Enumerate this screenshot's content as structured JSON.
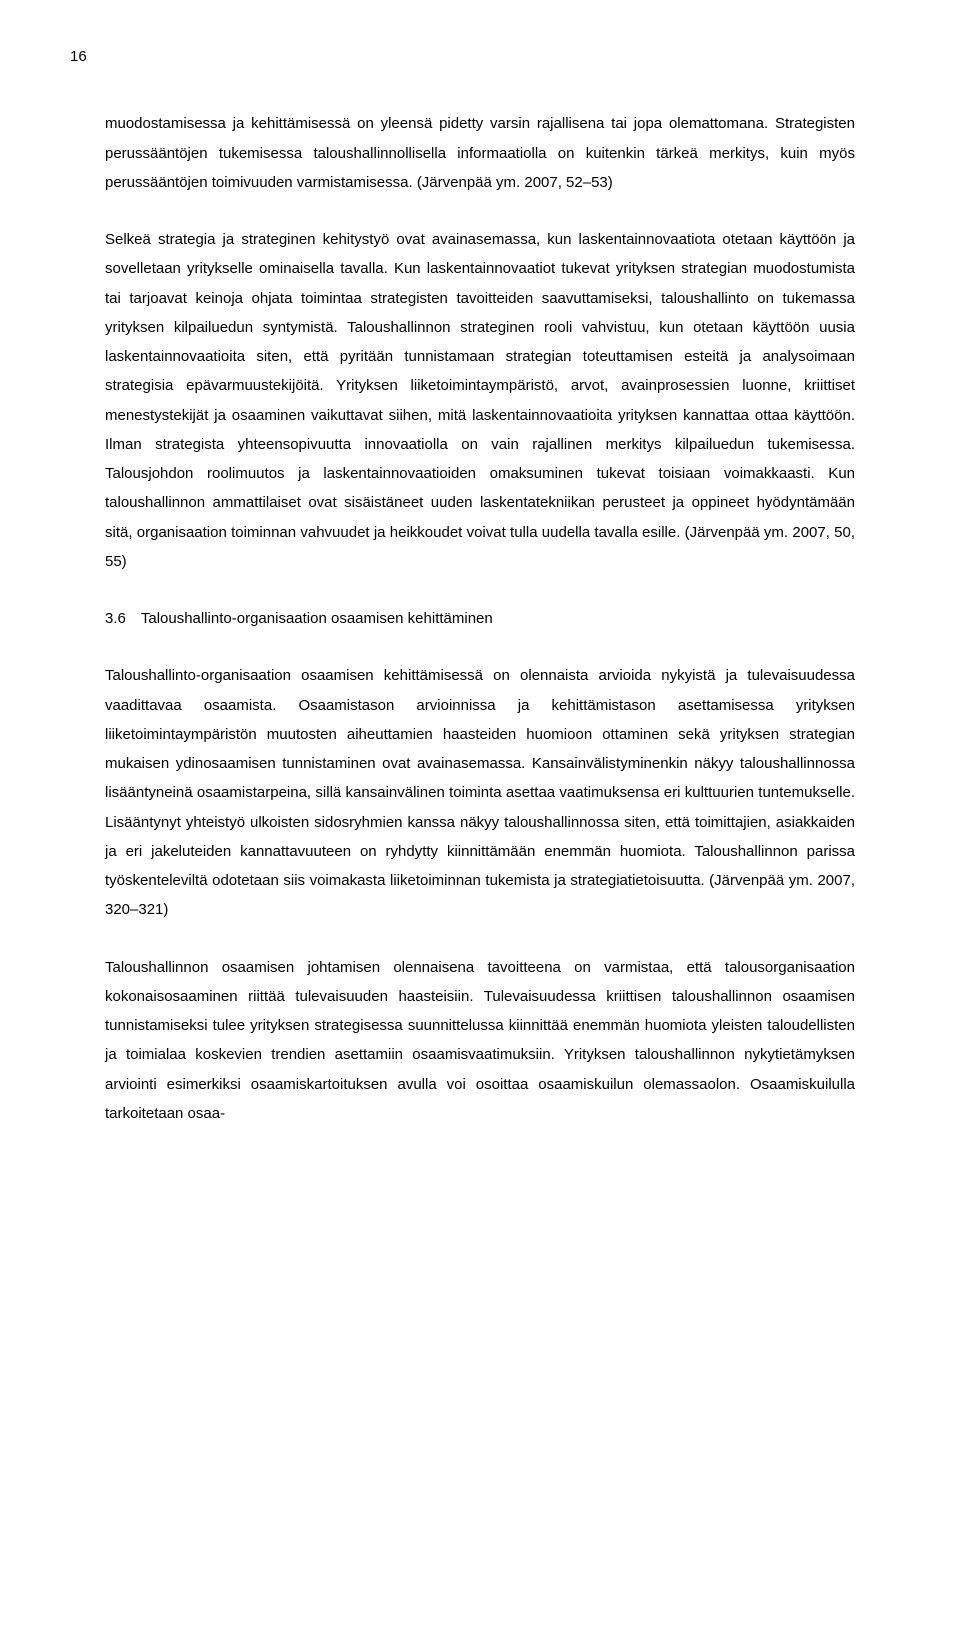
{
  "page_number": "16",
  "paragraphs": {
    "p1": "muodostamisessa ja kehittämisessä on yleensä pidetty varsin rajallisena tai jopa olemattomana. Strategisten perussääntöjen tukemisessa taloushallinnollisella informaatiolla on kuitenkin tärkeä merkitys, kuin myös perussääntöjen toimivuuden varmistamisessa. (Järvenpää ym. 2007, 52–53)",
    "p2": "Selkeä strategia ja strateginen kehitystyö ovat avainasemassa, kun laskentainnovaatiota otetaan käyttöön ja sovelletaan yritykselle ominaisella tavalla. Kun laskentainnovaatiot tukevat yrityksen strategian muodostumista tai tarjoavat keinoja ohjata toimintaa strategisten tavoitteiden saavuttamiseksi, taloushallinto on tukemassa yrityksen kilpailuedun syntymistä. Taloushallinnon strateginen rooli vahvistuu, kun otetaan käyttöön uusia laskentainnovaatioita siten, että pyritään tunnistamaan strategian toteuttamisen esteitä ja analysoimaan strategisia epävarmuustekijöitä. Yrityksen liiketoimintaympäristö, arvot, avainprosessien luonne, kriittiset menestystekijät ja osaaminen vaikuttavat siihen, mitä laskentainnovaatioita yrityksen kannattaa ottaa käyttöön. Ilman strategista yhteensopivuutta innovaatiolla on vain rajallinen merkitys kilpailuedun tukemisessa. Talousjohdon roolimuutos ja laskentainnovaatioiden omaksuminen tukevat toisiaan voimakkaasti. Kun taloushallinnon ammattilaiset ovat sisäistäneet uuden laskentatekniikan perusteet ja oppineet hyödyntämään sitä, organisaation toiminnan vahvuudet ja heikkoudet voivat tulla uudella tavalla esille. (Järvenpää ym. 2007, 50, 55)",
    "heading": "3.6 Taloushallinto-organisaation osaamisen kehittäminen",
    "p3": "Taloushallinto-organisaation osaamisen kehittämisessä on olennaista arvioida nykyistä ja tulevaisuudessa vaadittavaa osaamista. Osaamistason arvioinnissa ja kehittämistason asettamisessa yrityksen liiketoimintaympäristön muutosten aiheuttamien haasteiden huomioon ottaminen sekä yrityksen strategian mukaisen ydinosaamisen tunnistaminen ovat avainasemassa. Kansainvälistyminenkin näkyy taloushallinnossa lisääntyneinä osaamistarpeina, sillä kansainvälinen toiminta asettaa vaatimuksensa eri kulttuurien tuntemukselle. Lisääntynyt yhteistyö ulkoisten sidosryhmien kanssa näkyy taloushallinnossa siten, että toimittajien, asiakkaiden ja eri jakeluteiden kannattavuuteen on ryhdytty kiinnittämään enemmän huomiota. Taloushallinnon parissa työskenteleviltä odotetaan siis voimakasta liiketoiminnan tukemista ja strategiatietoisuutta. (Järvenpää ym. 2007, 320–321)",
    "p4": "Taloushallinnon osaamisen johtamisen olennaisena tavoitteena on varmistaa, että talousorganisaation kokonaisosaaminen riittää tulevaisuuden haasteisiin. Tulevaisuudessa kriittisen taloushallinnon osaamisen tunnistamiseksi tulee yrityksen strategisessa suunnittelussa kiinnittää enemmän huomiota yleisten taloudellisten ja toimialaa koskevien trendien asettamiin osaamisvaatimuksiin. Yrityksen taloushallinnon nykytietämyksen arviointi esimerkiksi osaamiskartoituksen avulla voi osoittaa osaamiskuilun olemassaolon. Osaamiskuilulla tarkoitetaan osaa-"
  }
}
